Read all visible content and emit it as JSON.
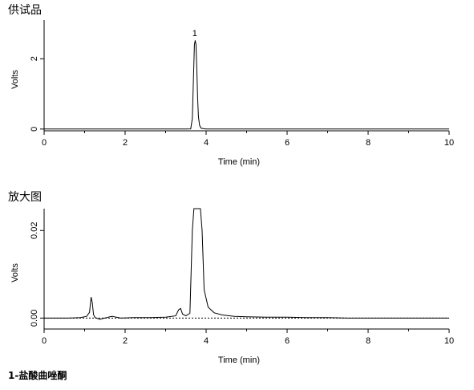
{
  "chart_data": [
    {
      "type": "line",
      "title": "供试品",
      "xlabel": "Time (min)",
      "ylabel": "Volts",
      "xlim": [
        0,
        10
      ],
      "ylim": [
        -0.05,
        3.1
      ],
      "xticks": [
        0,
        2,
        4,
        6,
        8,
        10
      ],
      "xticks_minor": [
        1,
        3,
        5,
        7,
        9
      ],
      "yticks": [
        0,
        2
      ],
      "annotations": [
        {
          "text": "1",
          "x": 3.72,
          "y": 2.55
        }
      ],
      "series": [
        {
          "x": [
            0,
            3.5,
            3.62,
            3.66,
            3.69,
            3.71,
            3.73,
            3.75,
            3.77,
            3.79,
            3.81,
            3.84,
            3.88,
            4.0,
            10
          ],
          "y": [
            0,
            0,
            0.005,
            0.3,
            1.5,
            2.4,
            2.52,
            2.4,
            1.7,
            0.9,
            0.35,
            0.1,
            0.02,
            0,
            0
          ]
        }
      ]
    },
    {
      "type": "line",
      "title": "放大图",
      "xlabel": "Time (min)",
      "ylabel": "Volts",
      "xlim": [
        0,
        10
      ],
      "ylim": [
        -0.0025,
        0.025
      ],
      "xticks": [
        0,
        2,
        4,
        6,
        8,
        10
      ],
      "xticks_minor": [
        1,
        3,
        5,
        7,
        9
      ],
      "yticks": [
        0,
        0.02
      ],
      "yticklabels": [
        "0.00",
        "0.02"
      ],
      "series": [
        {
          "x": [
            0,
            0.6,
            0.9,
            1.05,
            1.12,
            1.16,
            1.19,
            1.22,
            1.26,
            1.32,
            1.38,
            1.45,
            1.55,
            1.62,
            1.7,
            1.78,
            1.9,
            2.2,
            2.6,
            3.0,
            3.25,
            3.32,
            3.37,
            3.42,
            3.5,
            3.6,
            3.66,
            3.7,
            3.86,
            3.9,
            3.95,
            4.05,
            4.2,
            4.4,
            4.7,
            5.0,
            5.5,
            6.0,
            6.5,
            7.0,
            7.5,
            8.5,
            10
          ],
          "y": [
            0,
            0,
            0.0001,
            0.0004,
            0.0013,
            0.0048,
            0.0035,
            0.0008,
            0.0001,
            -0.0001,
            -0.0003,
            -0.0001,
            0.0001,
            0.0003,
            0.0004,
            0.0002,
            0,
            0.0001,
            0.0001,
            0.0002,
            0.0005,
            0.0019,
            0.0022,
            0.0009,
            0.0005,
            0.0011,
            0.02,
            0.025,
            0.025,
            0.02,
            0.0065,
            0.0025,
            0.0012,
            0.0007,
            0.0004,
            0.0003,
            0.0002,
            0.0002,
            0.0001,
            0.0001,
            0,
            0,
            0
          ]
        }
      ],
      "baseline": {
        "x": [
          0,
          10
        ],
        "y": [
          0,
          0
        ]
      }
    }
  ],
  "footnote": "1-盐酸曲唑酮"
}
